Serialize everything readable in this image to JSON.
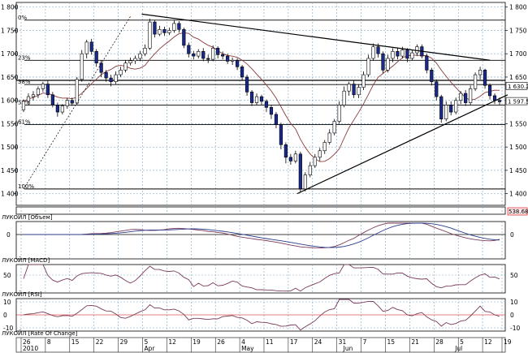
{
  "chart_data": {
    "type": "candlestick",
    "price_panel": {
      "ylim": [
        1375,
        1810
      ],
      "y_ticks": [
        "1 800",
        "1 750",
        "1 700",
        "1 650",
        "1 600",
        "1 550",
        "1 500",
        "1 450",
        "1 400"
      ],
      "y_tick_values": [
        1800,
        1750,
        1700,
        1650,
        1600,
        1550,
        1500,
        1450,
        1400
      ],
      "last_price_tag": "1 597.5",
      "ma_value_tag": "1 630.2",
      "fib_levels": [
        {
          "label": "0%",
          "value": 1772
        },
        {
          "label": "23%",
          "value": 1686
        },
        {
          "label": "38%",
          "value": 1634
        },
        {
          "label": "50%",
          "value": 1590
        },
        {
          "label": "61%",
          "value": 1548
        },
        {
          "label": "100%",
          "value": 1410
        }
      ],
      "extra_hline": 1643,
      "candles": [
        [
          1580,
          1598,
          1575,
          1602
        ],
        [
          1598,
          1608,
          1590,
          1615
        ],
        [
          1608,
          1612,
          1600,
          1620
        ],
        [
          1612,
          1625,
          1605,
          1630
        ],
        [
          1625,
          1635,
          1618,
          1640
        ],
        [
          1635,
          1612,
          1605,
          1642
        ],
        [
          1612,
          1590,
          1585,
          1618
        ],
        [
          1590,
          1575,
          1565,
          1595
        ],
        [
          1575,
          1588,
          1570,
          1592
        ],
        [
          1588,
          1600,
          1582,
          1605
        ],
        [
          1600,
          1594,
          1588,
          1606
        ],
        [
          1594,
          1645,
          1590,
          1650
        ],
        [
          1645,
          1700,
          1640,
          1708
        ],
        [
          1700,
          1725,
          1690,
          1730
        ],
        [
          1725,
          1705,
          1698,
          1732
        ],
        [
          1705,
          1680,
          1672,
          1710
        ],
        [
          1680,
          1660,
          1650,
          1686
        ],
        [
          1660,
          1648,
          1640,
          1665
        ],
        [
          1648,
          1640,
          1630,
          1655
        ],
        [
          1640,
          1655,
          1635,
          1662
        ],
        [
          1655,
          1665,
          1650,
          1672
        ],
        [
          1665,
          1680,
          1660,
          1686
        ],
        [
          1680,
          1685,
          1675,
          1692
        ],
        [
          1685,
          1690,
          1678,
          1696
        ],
        [
          1690,
          1700,
          1684,
          1706
        ],
        [
          1700,
          1712,
          1695,
          1720
        ],
        [
          1712,
          1768,
          1708,
          1775
        ],
        [
          1768,
          1742,
          1735,
          1772
        ],
        [
          1742,
          1752,
          1738,
          1760
        ],
        [
          1752,
          1745,
          1738,
          1758
        ],
        [
          1745,
          1750,
          1740,
          1756
        ],
        [
          1750,
          1765,
          1745,
          1772
        ],
        [
          1765,
          1752,
          1745,
          1770
        ],
        [
          1752,
          1718,
          1712,
          1756
        ],
        [
          1718,
          1700,
          1692,
          1724
        ],
        [
          1700,
          1695,
          1688,
          1706
        ],
        [
          1695,
          1705,
          1690,
          1710
        ],
        [
          1705,
          1690,
          1684,
          1712
        ],
        [
          1690,
          1688,
          1680,
          1698
        ],
        [
          1688,
          1712,
          1684,
          1718
        ],
        [
          1712,
          1698,
          1690,
          1716
        ],
        [
          1698,
          1695,
          1688,
          1705
        ],
        [
          1695,
          1684,
          1678,
          1700
        ],
        [
          1684,
          1686,
          1676,
          1692
        ],
        [
          1686,
          1672,
          1665,
          1690
        ],
        [
          1672,
          1650,
          1642,
          1676
        ],
        [
          1650,
          1618,
          1610,
          1655
        ],
        [
          1618,
          1595,
          1588,
          1622
        ],
        [
          1595,
          1608,
          1590,
          1615
        ],
        [
          1608,
          1598,
          1590,
          1612
        ],
        [
          1598,
          1585,
          1575,
          1602
        ],
        [
          1585,
          1570,
          1560,
          1590
        ],
        [
          1570,
          1548,
          1540,
          1575
        ],
        [
          1548,
          1505,
          1495,
          1552
        ],
        [
          1505,
          1478,
          1465,
          1510
        ],
        [
          1478,
          1470,
          1462,
          1485
        ],
        [
          1470,
          1485,
          1465,
          1492
        ],
        [
          1485,
          1410,
          1402,
          1490
        ],
        [
          1410,
          1440,
          1405,
          1446
        ],
        [
          1440,
          1460,
          1435,
          1468
        ],
        [
          1460,
          1478,
          1455,
          1485
        ],
        [
          1478,
          1492,
          1470,
          1498
        ],
        [
          1492,
          1510,
          1485,
          1515
        ],
        [
          1510,
          1530,
          1505,
          1538
        ],
        [
          1530,
          1555,
          1525,
          1560
        ],
        [
          1555,
          1590,
          1550,
          1598
        ],
        [
          1590,
          1620,
          1585,
          1630
        ],
        [
          1620,
          1635,
          1610,
          1640
        ],
        [
          1635,
          1612,
          1605,
          1642
        ],
        [
          1612,
          1628,
          1605,
          1635
        ],
        [
          1628,
          1655,
          1622,
          1662
        ],
        [
          1655,
          1690,
          1650,
          1698
        ],
        [
          1690,
          1715,
          1685,
          1722
        ],
        [
          1715,
          1700,
          1692,
          1722
        ],
        [
          1700,
          1665,
          1658,
          1705
        ],
        [
          1665,
          1690,
          1660,
          1698
        ],
        [
          1690,
          1705,
          1682,
          1712
        ],
        [
          1705,
          1695,
          1688,
          1712
        ],
        [
          1695,
          1708,
          1690,
          1715
        ],
        [
          1708,
          1690,
          1682,
          1712
        ],
        [
          1690,
          1702,
          1686,
          1708
        ],
        [
          1702,
          1715,
          1695,
          1720
        ],
        [
          1715,
          1695,
          1690,
          1720
        ],
        [
          1695,
          1665,
          1658,
          1700
        ],
        [
          1665,
          1640,
          1632,
          1670
        ],
        [
          1640,
          1608,
          1600,
          1645
        ],
        [
          1608,
          1560,
          1552,
          1612
        ],
        [
          1560,
          1590,
          1555,
          1598
        ],
        [
          1590,
          1575,
          1568,
          1598
        ],
        [
          1575,
          1600,
          1570,
          1606
        ],
        [
          1600,
          1615,
          1592,
          1620
        ],
        [
          1615,
          1595,
          1588,
          1622
        ],
        [
          1595,
          1625,
          1590,
          1632
        ],
        [
          1625,
          1655,
          1620,
          1660
        ],
        [
          1655,
          1665,
          1645,
          1672
        ],
        [
          1665,
          1632,
          1625,
          1668
        ],
        [
          1632,
          1610,
          1602,
          1636
        ],
        [
          1610,
          1600,
          1592,
          1615
        ],
        [
          1600,
          1597,
          1590,
          1606
        ]
      ]
    },
    "indicators": [
      {
        "name": "ЛУКОЙЛ [Объем]",
        "value_tag": "538.68"
      },
      {
        "name": "ЛУКОЙЛ [MACD]",
        "y_ticks": [
          "0"
        ],
        "y_tick_values": [
          0
        ]
      },
      {
        "name": "ЛУКОЙЛ [RSI]",
        "y_ticks": [
          "50"
        ],
        "y_tick_values": [
          50
        ]
      },
      {
        "name": "ЛУКОЙЛ [Rate Of Change]",
        "y_ticks": [
          "10",
          "0",
          "-10"
        ],
        "y_tick_values": [
          10,
          0,
          -10
        ]
      }
    ],
    "x_day_ticks": [
      "26",
      "8",
      "15",
      "22",
      "29",
      "5",
      "12",
      "19",
      "26",
      "4",
      "11",
      "17",
      "24",
      "31",
      "7",
      "15",
      "21",
      "28",
      "5",
      "12",
      "19"
    ],
    "x_day_tick_candle_index": [
      0,
      5,
      10,
      15,
      20,
      25,
      30,
      35,
      40,
      45,
      50,
      55,
      60,
      65,
      70,
      75,
      80,
      85,
      90,
      95,
      99
    ],
    "x_month_ticks": [
      "2010",
      "Apr",
      "May",
      "Jun",
      "Jul"
    ],
    "x_month_tick_candle_index": [
      0,
      25,
      45,
      66,
      89
    ]
  }
}
